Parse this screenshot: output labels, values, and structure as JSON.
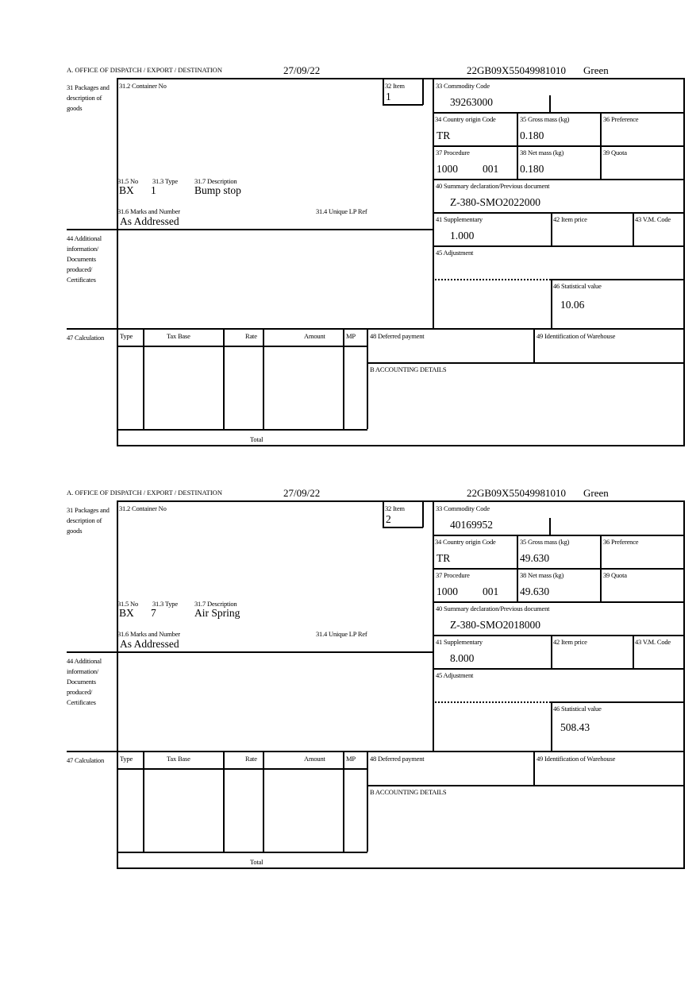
{
  "labels": {
    "office": "A.  OFFICE OF DISPATCH / EXPORT / DESTINATION",
    "box31": "31 Packages and description of goods",
    "box31_2": "31.2 Container No",
    "box32": "32 Item",
    "box31_5": "31.5 No",
    "box31_3": "31.3 Type",
    "box31_7": "31.7 Description",
    "box31_6": "31.6 Marks and Number",
    "box31_4": "31.4 Unique LP Ref",
    "box33": "33 Commodity Code",
    "box34": "34 Country origin Code",
    "box35": "35 Gross mass (kg)",
    "box36": "36 Preference",
    "box37": "37 Procedure",
    "box38": "38 Net mass (kg)",
    "box39": "39 Quota",
    "box40": "40 Summary declaration/Previous document",
    "box41": "41 Supplementary",
    "box42": "42 Item price",
    "box43": "43 V.M. Code",
    "box44": "44 Additional information/ Documents produced/ Certificates",
    "box45": "45 Adjustment",
    "box46": "46 Statistical value",
    "box47": "47 Calculation",
    "col_type": "Type",
    "col_taxbase": "Tax Base",
    "col_rate": "Rate",
    "col_amount": "Amount",
    "col_mp": "MP",
    "total": "Total",
    "box48": "48 Deferred payment",
    "box49": "49 Identification of Warehouse",
    "accounting": "B ACCOUNTING DETAILS"
  },
  "forms": [
    {
      "date": "27/09/22",
      "reference": "22GB09X55049981010",
      "route": "Green",
      "item": "1",
      "no": "BX",
      "type": "1",
      "description": "Bump stop",
      "marks": "As Addressed",
      "commodity_code": "39263000",
      "country_origin": "TR",
      "gross_mass": "0.180",
      "procedure": "1000",
      "procedure_add": "001",
      "net_mass": "0.180",
      "previous_document": "Z-380-SMO2022000",
      "supplementary": "1.000",
      "statistical_value": "10.06"
    },
    {
      "date": "27/09/22",
      "reference": "22GB09X55049981010",
      "route": "Green",
      "item": "2",
      "no": "BX",
      "type": "7",
      "description": "Air Spring",
      "marks": "As Addressed",
      "commodity_code": "40169952",
      "country_origin": "TR",
      "gross_mass": "49.630",
      "procedure": "1000",
      "procedure_add": "001",
      "net_mass": "49.630",
      "previous_document": "Z-380-SMO2018000",
      "supplementary": "8.000",
      "statistical_value": "508.43"
    }
  ]
}
